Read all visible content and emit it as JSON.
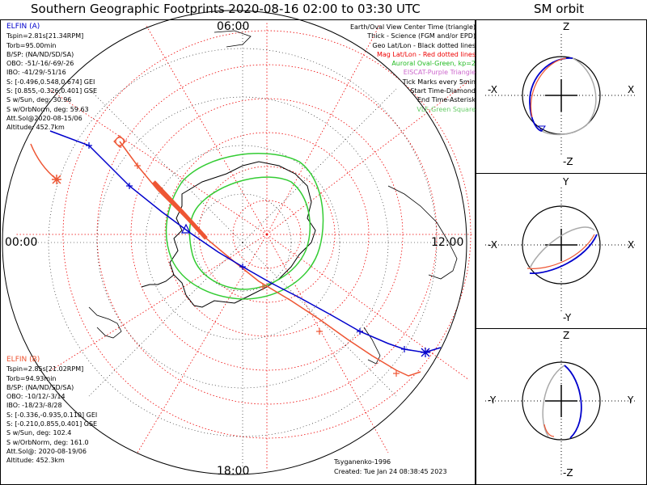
{
  "title": "Southern Geographic Footprints 2020-08-16 02:00 to 03:30 UTC",
  "orbit_title": "SM orbit",
  "clock_labels": {
    "top": "06:00",
    "left": "00:00",
    "right": "12:00",
    "bottom": "18:00"
  },
  "elfin_a": {
    "name": "ELFIN (A)",
    "color": "#0000cc",
    "lines": [
      "Tspin=2.81s[21.34RPM]",
      "Torb=95.00min",
      "B/SP: (NA/ND/SD/SA)",
      "OBO: -51/-16/-69/-26",
      "IBO: -41/29/-51/16",
      "S: [-0.496,0.548,0.674] GEI",
      "S: [0.855,-0.326,0.401] GSE",
      "S w/Sun, deg: 30.96",
      "S w/OrbNorm, deg: 59.63",
      "Att.Sol@2020-08-15/06",
      "Altitude: 452.7km"
    ]
  },
  "elfin_b": {
    "name": "ELFIN (B)",
    "color": "#ee5533",
    "lines": [
      "Tspin=2.85s[21.02RPM]",
      "Torb=94.93min",
      "B/SP: (NA/ND/SD/SA)",
      "OBO: -10/12/-3/14",
      "IBO: -18/23/-8/28",
      "S: [-0.336,-0.935,0.110] GEI",
      "S: [-0.210,0.855,0.401] GSE",
      "S w/Sun, deg: 102.4",
      "S w/OrbNorm, deg: 161.0",
      "Att.Sol@: 2020-08-19/06",
      "Altitude: 452.3km"
    ]
  },
  "legend": [
    {
      "text": "Earth/Oval View Center Time (triangle)",
      "color": "#000000"
    },
    {
      "text": "Thick - Science (FGM and/or EPD)",
      "color": "#000000"
    },
    {
      "text": "Geo Lat/Lon - Black dotted lines",
      "color": "#000000"
    },
    {
      "text": "Mag Lat/Lon - Red dotted lines",
      "color": "#ee0000"
    },
    {
      "text": "Auroral Oval-Green, kp=2",
      "color": "#22bb22"
    },
    {
      "text": "EISCAT-Purple Triangle",
      "color": "#cc66cc"
    },
    {
      "text": "Tick Marks every 5min",
      "color": "#000000"
    },
    {
      "text": "Start Time-Diamond",
      "color": "#000000"
    },
    {
      "text": "End Time-Asterisk",
      "color": "#000000"
    },
    {
      "text": "VLF-Green Square",
      "color": "#66cc66"
    }
  ],
  "credits": {
    "author": "Tsyganenko-1996",
    "created": "Created: Tue Jan 24 08:38:45 2023"
  },
  "orbit_panels": [
    {
      "top": "Z",
      "bottom": "-Z",
      "left": "-X",
      "right": "X"
    },
    {
      "top": "Y",
      "bottom": "-Y",
      "left": "-X",
      "right": "X"
    },
    {
      "top": "Z",
      "bottom": "-Z",
      "left": "-Y",
      "right": "Y"
    }
  ],
  "chart_data": {
    "type": "polar-map",
    "projection": "south polar stereographic",
    "clock_times": [
      "06:00",
      "12:00",
      "18:00",
      "00:00"
    ],
    "time_range": [
      "2020-08-16 02:00",
      "2020-08-16 03:30"
    ],
    "series": [
      {
        "name": "ELFIN (A)",
        "color": "#0000cc",
        "tick_interval_min": 5
      },
      {
        "name": "ELFIN (B)",
        "color": "#ee5533",
        "tick_interval_min": 5
      }
    ],
    "overlays": [
      "Geo Lat/Lon grid",
      "Mag Lat/Lon grid",
      "Auroral Oval kp=2",
      "Antarctica coastline"
    ]
  }
}
